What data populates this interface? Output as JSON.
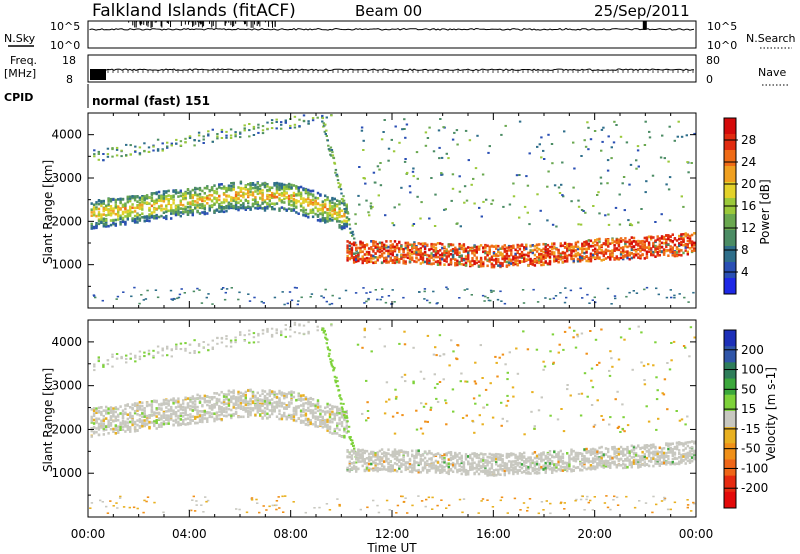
{
  "header": {
    "station": "Falkland Islands (fitACF)",
    "beam": "Beam 00",
    "date": "25/Sep/2011"
  },
  "status_panels": {
    "nsky_label": "N.Sky",
    "nsky_ticks": [
      "10^5",
      "10^0"
    ],
    "nsearch_label": "N.Search",
    "nsearch_ticks": [
      "10^5",
      "10^0"
    ],
    "freq_label_line1": "Freq.",
    "freq_label_line2": "[MHz]",
    "freq_ticks": [
      "18",
      "8"
    ],
    "nave_label": "Nave",
    "nave_ticks": [
      "80",
      "0"
    ],
    "cpid_label": "CPID",
    "cpid_value": "normal (fast) 151"
  },
  "x_axis": {
    "label": "Time UT",
    "ticks": [
      "00:00",
      "04:00",
      "08:00",
      "12:00",
      "16:00",
      "20:00",
      "00:00"
    ]
  },
  "power_panel": {
    "ylabel": "Slant Range [km]",
    "yticks": [
      "1000",
      "2000",
      "3000",
      "4000"
    ],
    "colorbar_title": "Power [dB]",
    "colorbar_ticks": [
      "4",
      "8",
      "12",
      "16",
      "20",
      "24",
      "28"
    ],
    "colors": [
      "#1e28e6",
      "#2a4fb4",
      "#2e6e8a",
      "#4b8c64",
      "#6aa84f",
      "#9bc93a",
      "#e3d22a",
      "#f0a020",
      "#ef6b16",
      "#e12b10",
      "#d40a0a"
    ]
  },
  "velocity_panel": {
    "ylabel": "Slant Range [km]",
    "yticks": [
      "1000",
      "2000",
      "3000",
      "4000"
    ],
    "colorbar_title": "Velocity [m s-1]",
    "colorbar_ticks": [
      "200",
      "100",
      "50",
      "15",
      "-15",
      "-50",
      "-100",
      "-200"
    ],
    "colors": [
      "#1d2fb8",
      "#2f55a8",
      "#2e7d5a",
      "#3ca83c",
      "#7ed23a",
      "#c8c8c0",
      "#e8b020",
      "#f09018",
      "#ef6618",
      "#e62a10",
      "#e30a0a"
    ]
  },
  "chart_data": [
    {
      "type": "heatmap",
      "title": "Power [dB]",
      "xlabel": "Time UT",
      "ylabel": "Slant Range [km]",
      "x_range_hours": [
        0,
        24
      ],
      "ylim": [
        0,
        4500
      ],
      "zlim": [
        0,
        30
      ],
      "bands": [
        {
          "x": [
            0,
            2,
            4,
            6,
            8,
            10
          ],
          "y_center": [
            2200,
            2350,
            2500,
            2650,
            2600,
            2200
          ],
          "value_db": 16
        },
        {
          "x": [
            10,
            12,
            14,
            16,
            18,
            20,
            22,
            24
          ],
          "y_center": [
            1350,
            1350,
            1300,
            1250,
            1300,
            1400,
            1450,
            1550
          ],
          "value_db": 26
        },
        {
          "x": [
            0,
            2,
            4,
            6,
            8,
            9.5
          ],
          "y_center": [
            3500,
            3700,
            3900,
            4100,
            4300,
            4450
          ],
          "value_db": 8
        }
      ]
    },
    {
      "type": "heatmap",
      "title": "Velocity [m s-1]",
      "xlabel": "Time UT",
      "ylabel": "Slant Range [km]",
      "x_range_hours": [
        0,
        24
      ],
      "ylim": [
        0,
        4500
      ],
      "zlim": [
        -250,
        250
      ],
      "bands": [
        {
          "x": [
            0,
            2,
            4,
            6,
            8,
            10
          ],
          "y_center": [
            2200,
            2350,
            2500,
            2650,
            2600,
            2200
          ],
          "value_ms": 0
        },
        {
          "x": [
            10,
            12,
            14,
            16,
            18,
            20,
            22,
            24
          ],
          "y_center": [
            1350,
            1350,
            1300,
            1250,
            1300,
            1400,
            1450,
            1550
          ],
          "value_ms": 0
        },
        {
          "x": [
            9.5,
            10,
            10.5
          ],
          "y_center": [
            4000,
            2500,
            1300
          ],
          "value_ms": 30
        }
      ]
    }
  ]
}
